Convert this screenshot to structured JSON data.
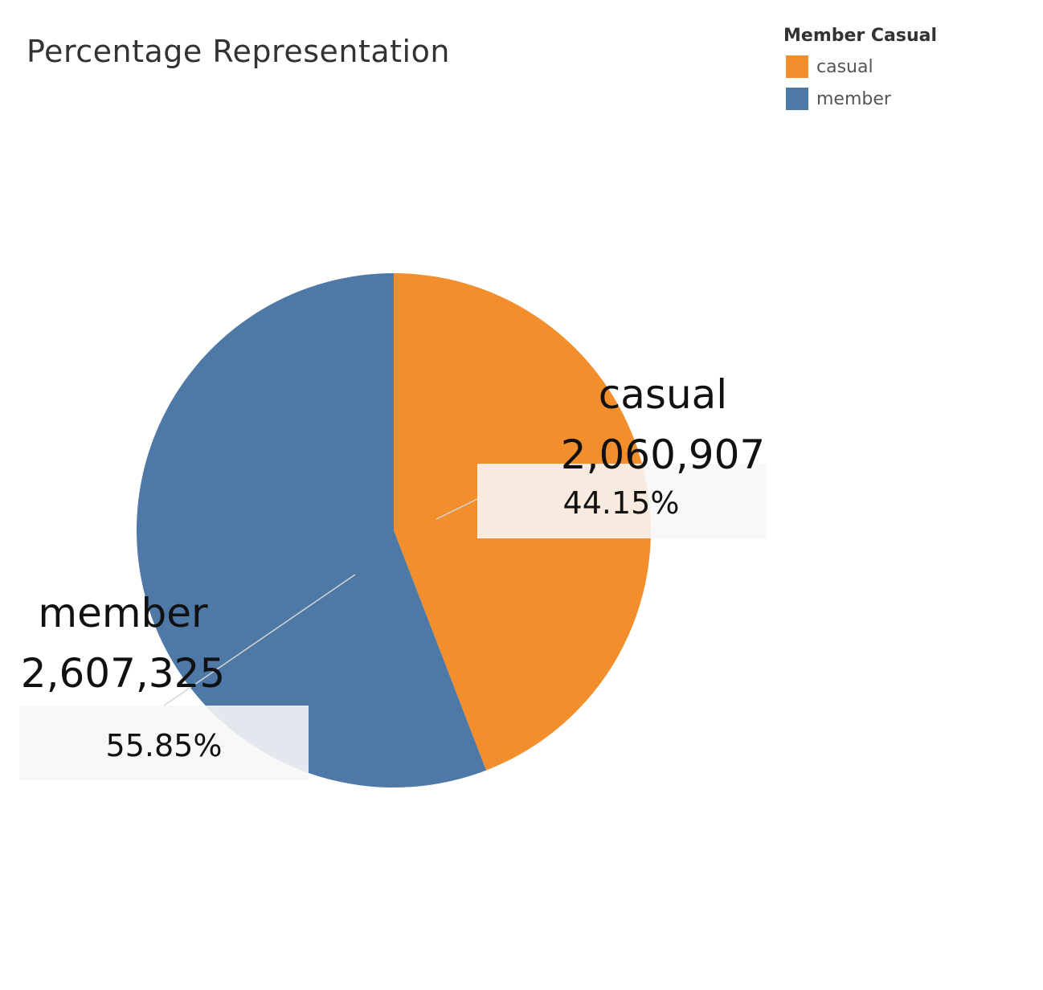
{
  "chart_data": {
    "type": "pie",
    "title": "Percentage Representation",
    "legend": {
      "title": "Member Casual",
      "placement": "top-right",
      "entries": [
        {
          "label": "casual",
          "color": "#F28E2B"
        },
        {
          "label": "member",
          "color": "#4E79A7"
        }
      ]
    },
    "slices": [
      {
        "label": "casual",
        "value": 2060907,
        "value_text": "2,060,907",
        "percent": 44.15,
        "percent_text": "44.15%",
        "color": "#F28E2B"
      },
      {
        "label": "member",
        "value": 2607325,
        "value_text": "2,607,325",
        "percent": 55.85,
        "percent_text": "55.85%",
        "color": "#4E79A7"
      }
    ]
  }
}
